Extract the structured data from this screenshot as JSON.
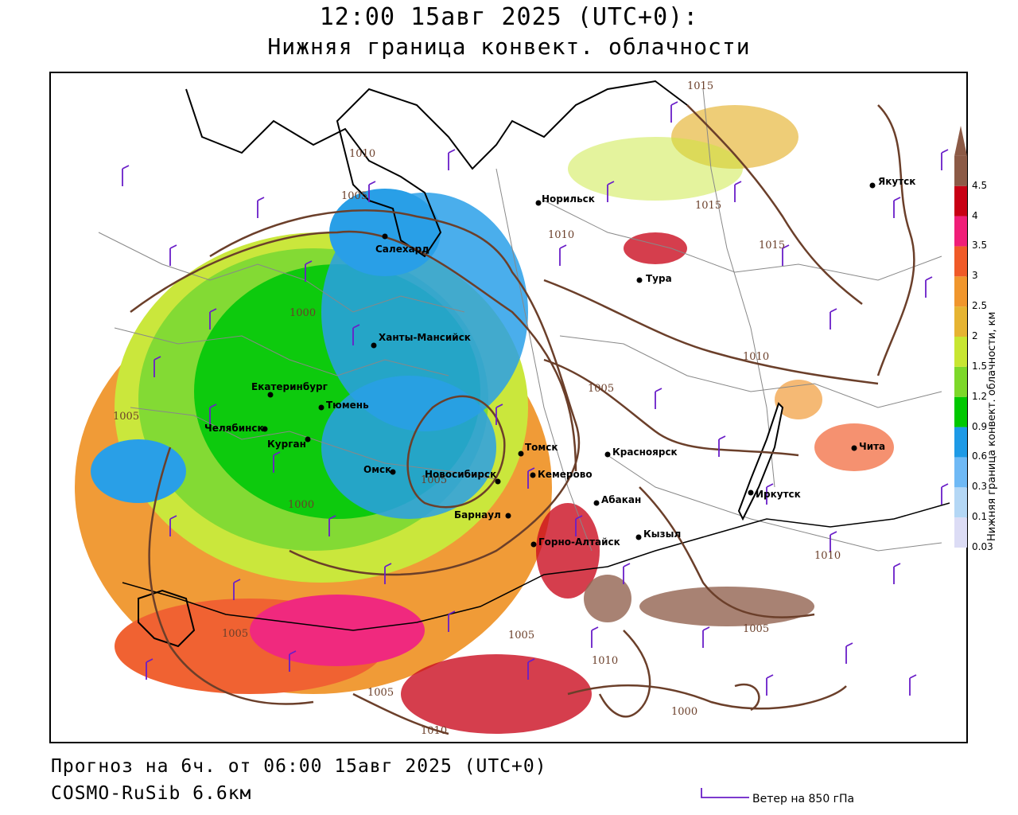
{
  "header": {
    "title": "12:00 15авг 2025 (UTC+0):",
    "subtitle": "Нижняя граница конвект. облачности"
  },
  "footer": {
    "forecast": "Прогноз на 6ч. от 06:00 15авг 2025 (UTC+0)",
    "model": "COSMO-RuSib 6.6км",
    "wind_key": "Ветер на 850 гПа"
  },
  "legend": {
    "title": "Нижняя граница конвект. облачности, км",
    "levels": [
      "0.03",
      "0.1",
      "0.3",
      "0.6",
      "0.9",
      "1.2",
      "1.5",
      "2",
      "2.5",
      "3",
      "3.5",
      "4",
      "4.5"
    ],
    "colors": [
      "#dcdcf5",
      "#b4d7f5",
      "#6fb9f5",
      "#1e9ae6",
      "#00c800",
      "#7dd82a",
      "#c8e632",
      "#e6b432",
      "#f0962d",
      "#f05a28",
      "#f01e78",
      "#c80014",
      "#8c5a46"
    ]
  },
  "cities": [
    {
      "name": "Салехард"
    },
    {
      "name": "Норильск"
    },
    {
      "name": "Якутск"
    },
    {
      "name": "Тура"
    },
    {
      "name": "Ханты-Мансийск"
    },
    {
      "name": "Екатеринбург"
    },
    {
      "name": "Тюмень"
    },
    {
      "name": "Челябинск"
    },
    {
      "name": "Курган"
    },
    {
      "name": "Омск"
    },
    {
      "name": "Новосибирск"
    },
    {
      "name": "Томск"
    },
    {
      "name": "Кемерово"
    },
    {
      "name": "Красноярск"
    },
    {
      "name": "Абакан"
    },
    {
      "name": "Барнаул"
    },
    {
      "name": "Горно-Алтайск"
    },
    {
      "name": "Кызыл"
    },
    {
      "name": "Иркутск"
    },
    {
      "name": "Чита"
    }
  ],
  "isobars": [
    "1010",
    "1005",
    "1015",
    "1010",
    "1015",
    "1015",
    "1000",
    "1010",
    "1005",
    "1005",
    "1000",
    "1005",
    "1005",
    "1005",
    "1010",
    "1005",
    "1000",
    "1010",
    "1005",
    "1010"
  ]
}
